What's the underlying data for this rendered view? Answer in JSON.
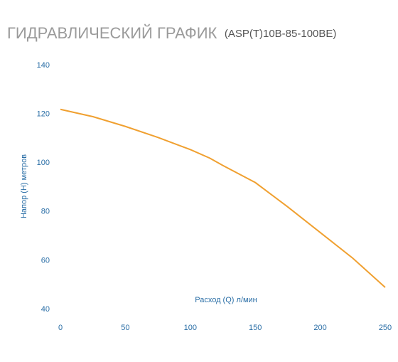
{
  "chart_data": {
    "type": "line",
    "title": "ГИДРАВЛИЧЕСКИЙ ГРАФИК",
    "subtitle": "(ASP(T)10B-85-100BE)",
    "x_label": "Расход (Q) л/мин",
    "y_label": "Напор (H) метров",
    "x": [
      0,
      25,
      50,
      75,
      100,
      115,
      125,
      150,
      175,
      200,
      225,
      250
    ],
    "series": [
      {
        "name": "ASP(T)10B-85-100BE",
        "color": "#f0a030",
        "values": [
          122,
          119,
          115,
          110.5,
          105.5,
          102,
          99,
          92,
          82,
          71.5,
          61,
          49
        ]
      }
    ],
    "xlim": [
      0,
      250
    ],
    "xticks": [
      0,
      50,
      100,
      150,
      200,
      250
    ],
    "ylim": [
      40,
      140
    ],
    "yticks": [
      40,
      60,
      80,
      100,
      120,
      140
    ],
    "grid": false
  }
}
